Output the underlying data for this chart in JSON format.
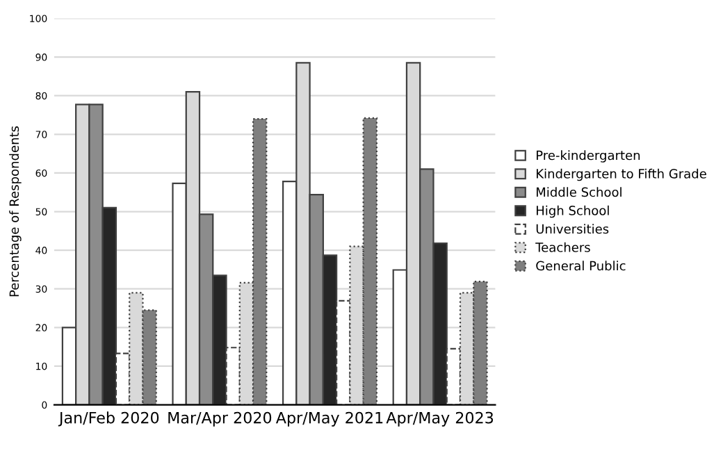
{
  "chart_data": {
    "type": "bar",
    "ylabel": "Percentage of Respondents",
    "categories": [
      "Jan/Feb 2020",
      "Mar/Apr 2020",
      "Apr/May 2021",
      "Apr/May 2023"
    ],
    "series": [
      {
        "name": "Pre-kindergarten",
        "color": "#ffffff",
        "values": [
          20,
          57.3,
          57.8,
          34.9
        ]
      },
      {
        "name": "Kindergarten to Fifth Grade",
        "color": "#d9d9d9",
        "values": [
          77.7,
          81,
          88.5,
          88.5
        ]
      },
      {
        "name": "Middle School",
        "color": "#8c8c8c",
        "values": [
          77.7,
          49.3,
          54.4,
          61
        ]
      },
      {
        "name": "High School",
        "color": "#262626",
        "values": [
          51,
          33.5,
          38.7,
          41.8
        ]
      },
      {
        "name": "Universities",
        "color": "#ffffff",
        "line_style": "dashed",
        "values": [
          13.3,
          14.8,
          26.9,
          14.5
        ]
      },
      {
        "name": "Teachers",
        "color": "#d9d9d9",
        "line_style": "dotted",
        "values": [
          29,
          31.6,
          41,
          29
        ]
      },
      {
        "name": "General Public",
        "color": "#7f7f7f",
        "line_style": "dotted",
        "values": [
          24.5,
          74,
          74.2,
          31.9
        ]
      }
    ],
    "ylim": [
      0,
      100
    ],
    "yticks": [
      0,
      10,
      20,
      30,
      40,
      50,
      60,
      70,
      80,
      90,
      100
    ],
    "grid": "y",
    "legend": "right"
  }
}
